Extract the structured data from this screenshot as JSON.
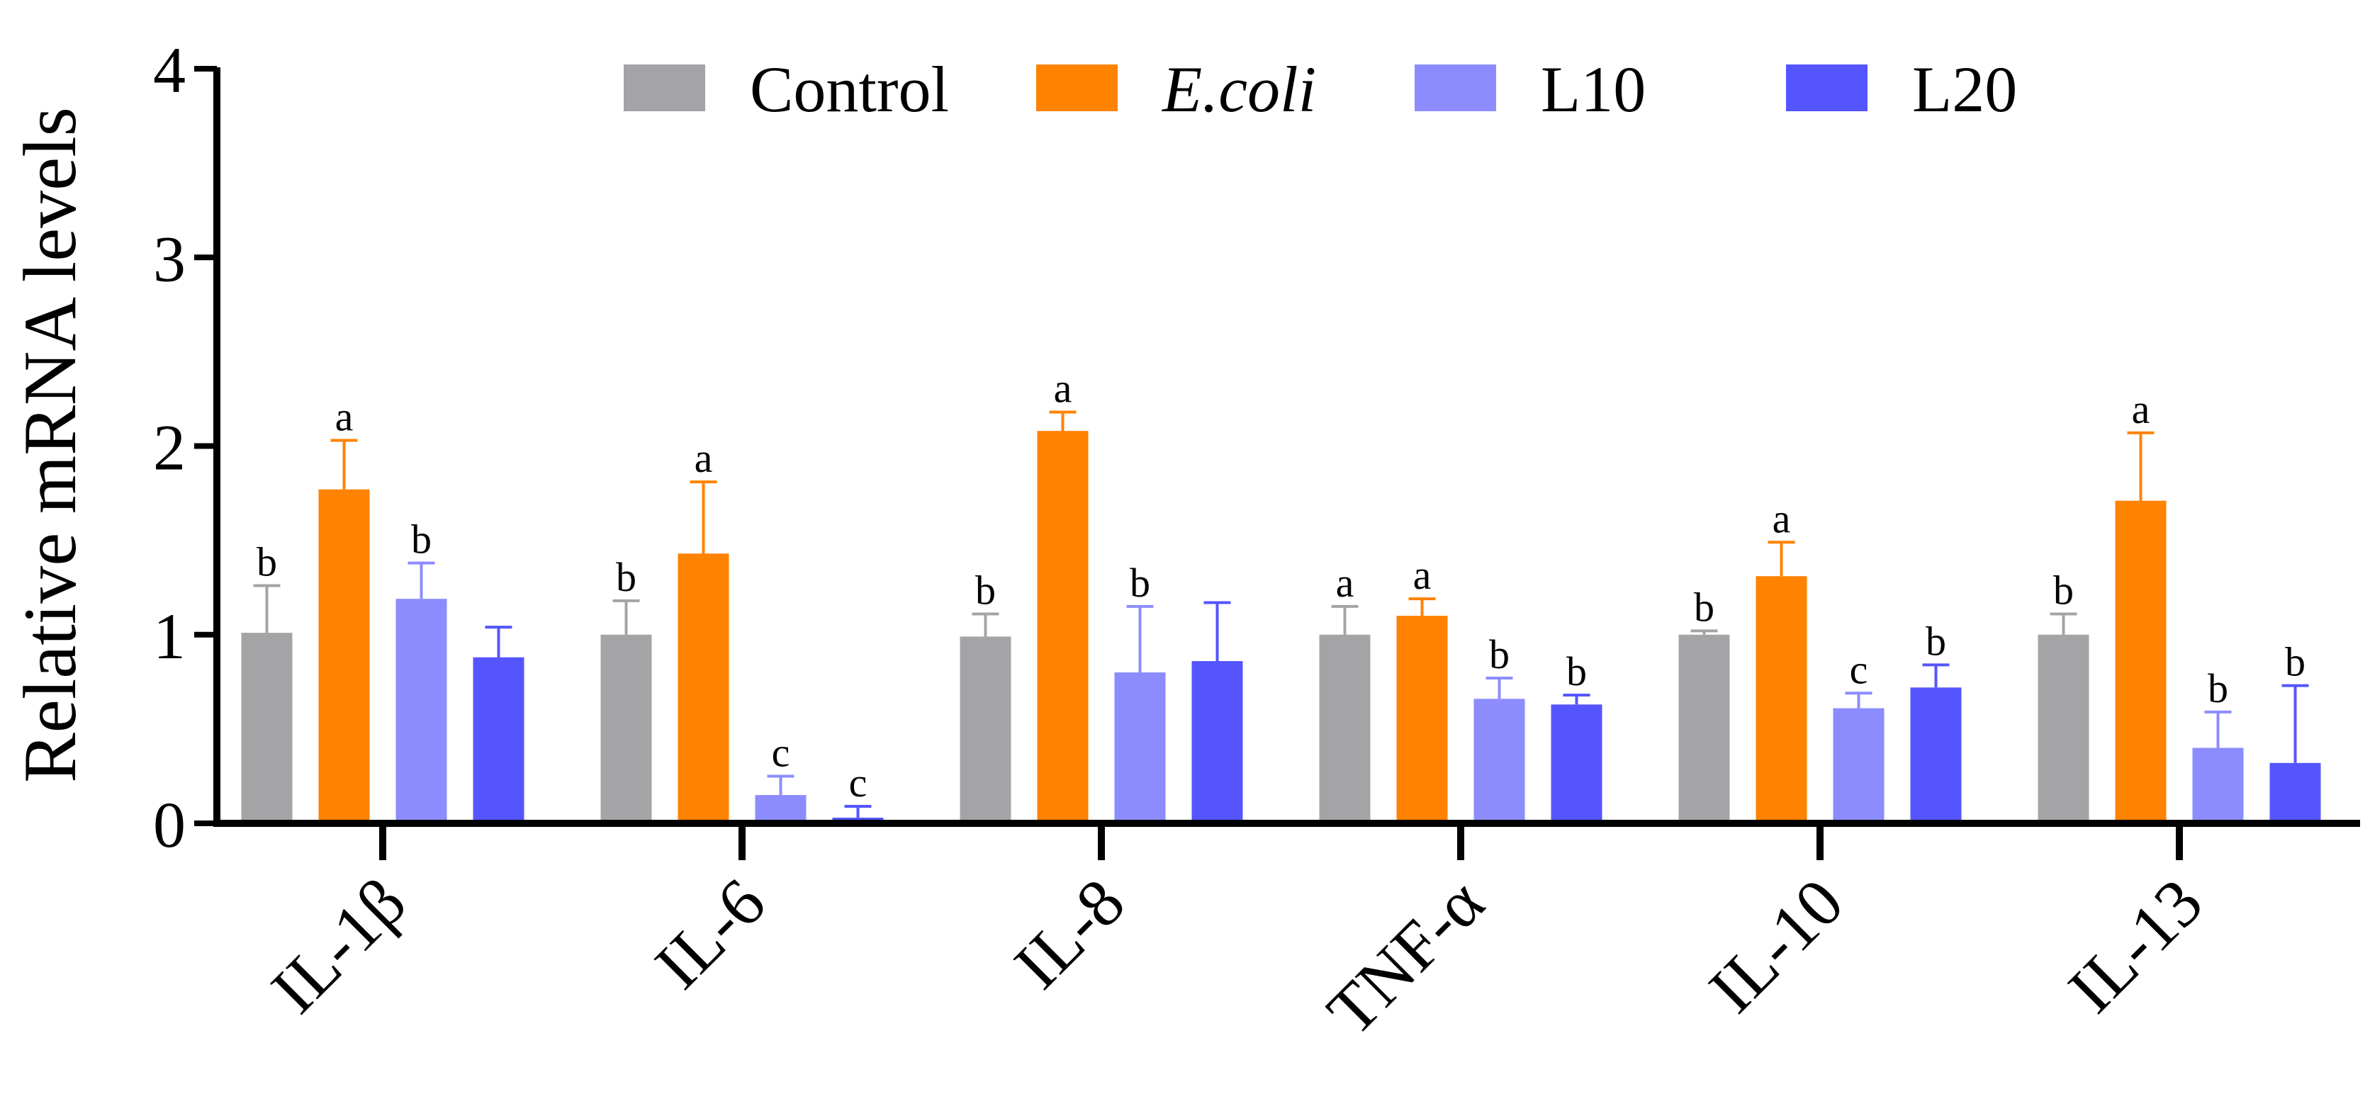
{
  "chart_data": {
    "type": "bar",
    "title": "",
    "xlabel": "",
    "ylabel": "Relative mRNA levels",
    "ylim": [
      0,
      4
    ],
    "yticks": [
      "0",
      "1",
      "2",
      "3",
      "4"
    ],
    "grid": false,
    "legend_position": "top",
    "categories": [
      "IL-1β",
      "IL-6",
      "IL-8",
      "TNF-α",
      "IL-10",
      "IL-13"
    ],
    "series": [
      {
        "name": "Control",
        "color": "#a4a4a7",
        "italic": false,
        "values": [
          1.01,
          1.0,
          0.99,
          1.0,
          1.0,
          1.0
        ],
        "errors": [
          0.25,
          0.18,
          0.12,
          0.15,
          0.02,
          0.11
        ],
        "letters": [
          "b",
          "b",
          "b",
          "a",
          "b",
          "b"
        ]
      },
      {
        "name": "E.coli",
        "color": "#ff8200",
        "italic": true,
        "values": [
          1.77,
          1.43,
          2.08,
          1.1,
          1.31,
          1.71
        ],
        "errors": [
          0.26,
          0.38,
          0.1,
          0.09,
          0.18,
          0.36
        ],
        "letters": [
          "a",
          "a",
          "a",
          "a",
          "a",
          "a"
        ]
      },
      {
        "name": "L10",
        "color": "#8c8cff",
        "italic": false,
        "values": [
          1.19,
          0.15,
          0.8,
          0.66,
          0.61,
          0.4
        ],
        "errors": [
          0.19,
          0.1,
          0.35,
          0.11,
          0.08,
          0.19
        ],
        "letters": [
          "b",
          "c",
          "b",
          "b",
          "c",
          "b"
        ]
      },
      {
        "name": "L20",
        "color": "#5555ff",
        "italic": false,
        "values": [
          0.88,
          0.03,
          0.86,
          0.63,
          0.72,
          0.32
        ],
        "errors": [
          0.16,
          0.06,
          0.31,
          0.05,
          0.12,
          0.41
        ],
        "letters": [
          "",
          "c",
          "",
          "b",
          "b",
          "b"
        ]
      }
    ]
  }
}
